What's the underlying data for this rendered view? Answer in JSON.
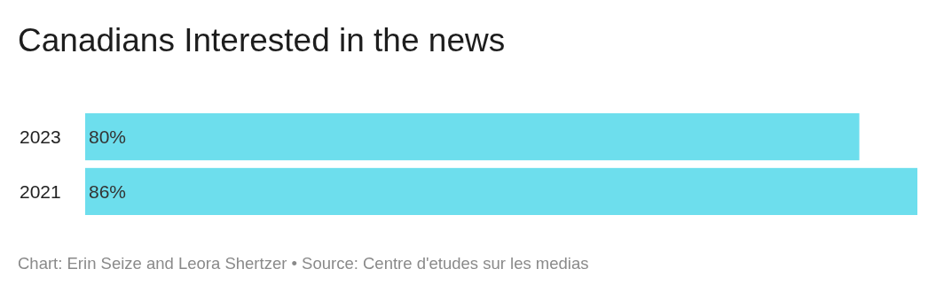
{
  "chart_data": {
    "type": "bar",
    "orientation": "horizontal",
    "title": "Canadians Interested in the news",
    "categories": [
      "2023",
      "2021"
    ],
    "values": [
      80,
      86
    ],
    "color": "#6ddeed",
    "value_labels": [
      "80%",
      "86%"
    ],
    "annotations": [
      "Chart: Erin Seize and Leora Shertzer • Source: Centre d'etudes sur les medias"
    ]
  }
}
